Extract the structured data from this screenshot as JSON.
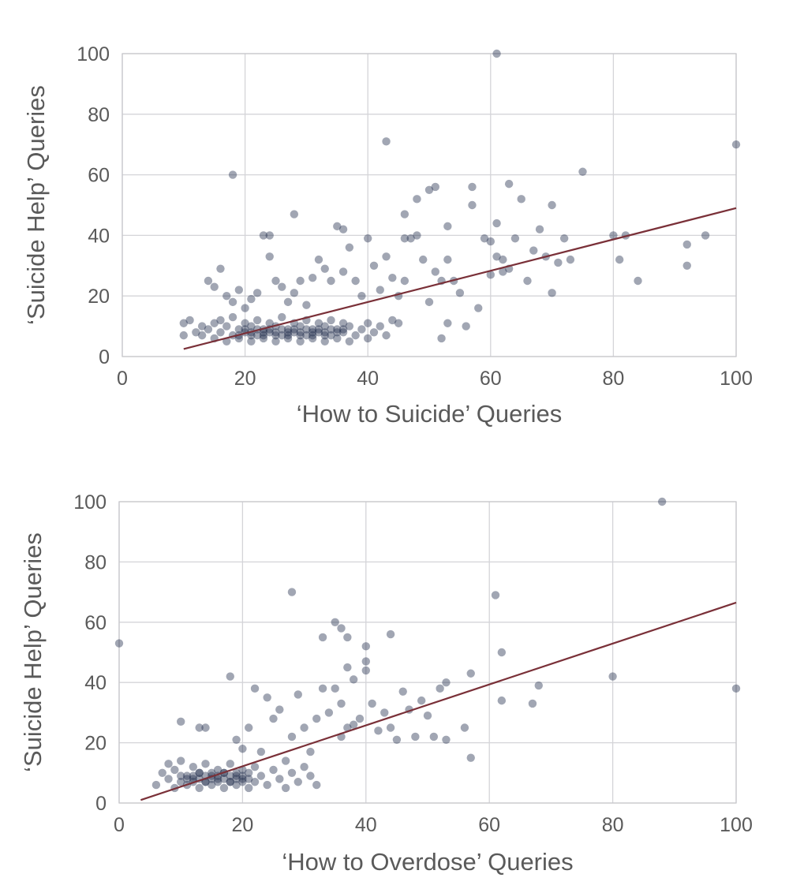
{
  "chart_data": [
    {
      "type": "scatter",
      "title": "",
      "xlabel": "‘How to Suicide’ Queries",
      "ylabel": "‘Suicide Help’ Queries",
      "xlim": [
        0,
        100
      ],
      "ylim": [
        0,
        100
      ],
      "xticks": [
        "0",
        "20",
        "40",
        "60",
        "80",
        "100"
      ],
      "yticks": [
        "0",
        "20",
        "40",
        "60",
        "80",
        "100"
      ],
      "grid": true,
      "point_color": "#1f2a4a",
      "trend_color": "#7a3038",
      "trendline": {
        "x": [
          10,
          100
        ],
        "y": [
          2.5,
          49
        ]
      },
      "points": [
        [
          10,
          11
        ],
        [
          11,
          12
        ],
        [
          10,
          7
        ],
        [
          12,
          8
        ],
        [
          13,
          10
        ],
        [
          13,
          7
        ],
        [
          14,
          9
        ],
        [
          15,
          11
        ],
        [
          15,
          6
        ],
        [
          16,
          8
        ],
        [
          16,
          12
        ],
        [
          17,
          5
        ],
        [
          17,
          10
        ],
        [
          18,
          7
        ],
        [
          18,
          13
        ],
        [
          19,
          9
        ],
        [
          19,
          6
        ],
        [
          20,
          11
        ],
        [
          20,
          8
        ],
        [
          21,
          5
        ],
        [
          21,
          10
        ],
        [
          22,
          7
        ],
        [
          22,
          12
        ],
        [
          23,
          9
        ],
        [
          23,
          6
        ],
        [
          24,
          11
        ],
        [
          24,
          8
        ],
        [
          25,
          5
        ],
        [
          25,
          10
        ],
        [
          26,
          7
        ],
        [
          26,
          13
        ],
        [
          27,
          9
        ],
        [
          27,
          6
        ],
        [
          28,
          11
        ],
        [
          28,
          8
        ],
        [
          29,
          5
        ],
        [
          29,
          10
        ],
        [
          30,
          7
        ],
        [
          30,
          12
        ],
        [
          31,
          9
        ],
        [
          31,
          6
        ],
        [
          32,
          11
        ],
        [
          32,
          8
        ],
        [
          33,
          5
        ],
        [
          33,
          10
        ],
        [
          34,
          7
        ],
        [
          34,
          12
        ],
        [
          35,
          9
        ],
        [
          35,
          6
        ],
        [
          36,
          11
        ],
        [
          36,
          8
        ],
        [
          37,
          5
        ],
        [
          37,
          10
        ],
        [
          38,
          7
        ],
        [
          39,
          9
        ],
        [
          40,
          11
        ],
        [
          40,
          6
        ],
        [
          41,
          8
        ],
        [
          42,
          10
        ],
        [
          43,
          7
        ],
        [
          44,
          12
        ],
        [
          45,
          11
        ],
        [
          20,
          9
        ],
        [
          22,
          9
        ],
        [
          24,
          9
        ],
        [
          26,
          9
        ],
        [
          28,
          9
        ],
        [
          30,
          9
        ],
        [
          32,
          9
        ],
        [
          34,
          9
        ],
        [
          36,
          9
        ],
        [
          21,
          8
        ],
        [
          23,
          8
        ],
        [
          25,
          8
        ],
        [
          27,
          8
        ],
        [
          29,
          8
        ],
        [
          31,
          8
        ],
        [
          33,
          8
        ],
        [
          35,
          8
        ],
        [
          19,
          7
        ],
        [
          21,
          7
        ],
        [
          23,
          7
        ],
        [
          25,
          7
        ],
        [
          27,
          7
        ],
        [
          29,
          7
        ],
        [
          31,
          7
        ],
        [
          33,
          7
        ],
        [
          14,
          25
        ],
        [
          15,
          23
        ],
        [
          16,
          29
        ],
        [
          17,
          20
        ],
        [
          18,
          18
        ],
        [
          19,
          22
        ],
        [
          20,
          16
        ],
        [
          21,
          19
        ],
        [
          22,
          21
        ],
        [
          23,
          40
        ],
        [
          24,
          40
        ],
        [
          24,
          33
        ],
        [
          25,
          25
        ],
        [
          26,
          23
        ],
        [
          27,
          18
        ],
        [
          28,
          47
        ],
        [
          28,
          21
        ],
        [
          29,
          25
        ],
        [
          30,
          17
        ],
        [
          31,
          26
        ],
        [
          32,
          32
        ],
        [
          33,
          29
        ],
        [
          34,
          25
        ],
        [
          35,
          43
        ],
        [
          36,
          28
        ],
        [
          36,
          42
        ],
        [
          37,
          36
        ],
        [
          38,
          25
        ],
        [
          39,
          20
        ],
        [
          40,
          39
        ],
        [
          41,
          30
        ],
        [
          42,
          22
        ],
        [
          43,
          33
        ],
        [
          43,
          71
        ],
        [
          44,
          26
        ],
        [
          45,
          20
        ],
        [
          46,
          25
        ],
        [
          46,
          39
        ],
        [
          46,
          47
        ],
        [
          47,
          39
        ],
        [
          48,
          52
        ],
        [
          48,
          40
        ],
        [
          49,
          32
        ],
        [
          50,
          55
        ],
        [
          50,
          18
        ],
        [
          51,
          56
        ],
        [
          51,
          28
        ],
        [
          52,
          25
        ],
        [
          53,
          43
        ],
        [
          53,
          32
        ],
        [
          54,
          25
        ],
        [
          55,
          21
        ],
        [
          56,
          10
        ],
        [
          57,
          56
        ],
        [
          57,
          50
        ],
        [
          58,
          16
        ],
        [
          59,
          39
        ],
        [
          60,
          38
        ],
        [
          61,
          44
        ],
        [
          61,
          33
        ],
        [
          62,
          32
        ],
        [
          63,
          57
        ],
        [
          64,
          39
        ],
        [
          65,
          52
        ],
        [
          66,
          25
        ],
        [
          67,
          35
        ],
        [
          68,
          42
        ],
        [
          69,
          33
        ],
        [
          70,
          21
        ],
        [
          70,
          50
        ],
        [
          71,
          31
        ],
        [
          72,
          39
        ],
        [
          73,
          32
        ],
        [
          75,
          61
        ],
        [
          80,
          40
        ],
        [
          81,
          32
        ],
        [
          82,
          40
        ],
        [
          84,
          25
        ],
        [
          92,
          37
        ],
        [
          92,
          30
        ],
        [
          95,
          40
        ],
        [
          100,
          70
        ],
        [
          61,
          100
        ],
        [
          18,
          60
        ],
        [
          52,
          6
        ],
        [
          53,
          11
        ],
        [
          60,
          27
        ],
        [
          62,
          28
        ],
        [
          63,
          29
        ]
      ]
    },
    {
      "type": "scatter",
      "title": "",
      "xlabel": "‘How to Overdose’ Queries",
      "ylabel": "‘Suicide Help’ Queries",
      "xlim": [
        0,
        100
      ],
      "ylim": [
        0,
        100
      ],
      "xticks": [
        "0",
        "20",
        "40",
        "60",
        "80",
        "100"
      ],
      "yticks": [
        "0",
        "20",
        "40",
        "60",
        "80",
        "100"
      ],
      "grid": true,
      "point_color": "#1f2a4a",
      "trend_color": "#7a3038",
      "trendline": {
        "x": [
          3.5,
          100
        ],
        "y": [
          1,
          66.5
        ]
      },
      "points": [
        [
          6,
          6
        ],
        [
          7,
          10
        ],
        [
          8,
          8
        ],
        [
          8,
          13
        ],
        [
          9,
          5
        ],
        [
          9,
          11
        ],
        [
          10,
          7
        ],
        [
          10,
          14
        ],
        [
          11,
          9
        ],
        [
          11,
          6
        ],
        [
          12,
          12
        ],
        [
          12,
          8
        ],
        [
          13,
          5
        ],
        [
          13,
          10
        ],
        [
          14,
          7
        ],
        [
          14,
          13
        ],
        [
          15,
          9
        ],
        [
          15,
          6
        ],
        [
          16,
          11
        ],
        [
          16,
          8
        ],
        [
          17,
          5
        ],
        [
          17,
          10
        ],
        [
          18,
          7
        ],
        [
          18,
          13
        ],
        [
          19,
          9
        ],
        [
          19,
          6
        ],
        [
          20,
          11
        ],
        [
          20,
          8
        ],
        [
          21,
          5
        ],
        [
          21,
          10
        ],
        [
          22,
          7
        ],
        [
          22,
          12
        ],
        [
          23,
          9
        ],
        [
          24,
          6
        ],
        [
          25,
          11
        ],
        [
          26,
          8
        ],
        [
          27,
          5
        ],
        [
          28,
          10
        ],
        [
          29,
          7
        ],
        [
          30,
          12
        ],
        [
          31,
          9
        ],
        [
          32,
          6
        ],
        [
          10,
          9
        ],
        [
          12,
          9
        ],
        [
          14,
          9
        ],
        [
          16,
          9
        ],
        [
          18,
          9
        ],
        [
          20,
          9
        ],
        [
          11,
          8
        ],
        [
          13,
          8
        ],
        [
          15,
          8
        ],
        [
          17,
          8
        ],
        [
          19,
          8
        ],
        [
          21,
          8
        ],
        [
          12,
          7
        ],
        [
          14,
          7
        ],
        [
          16,
          7
        ],
        [
          18,
          7
        ],
        [
          20,
          7
        ],
        [
          13,
          10
        ],
        [
          15,
          10
        ],
        [
          17,
          10
        ],
        [
          19,
          10
        ],
        [
          0,
          53
        ],
        [
          10,
          27
        ],
        [
          13,
          25
        ],
        [
          14,
          25
        ],
        [
          18,
          42
        ],
        [
          19,
          21
        ],
        [
          20,
          18
        ],
        [
          21,
          25
        ],
        [
          22,
          38
        ],
        [
          23,
          17
        ],
        [
          24,
          35
        ],
        [
          25,
          28
        ],
        [
          26,
          31
        ],
        [
          27,
          14
        ],
        [
          28,
          22
        ],
        [
          28,
          70
        ],
        [
          29,
          36
        ],
        [
          30,
          25
        ],
        [
          31,
          17
        ],
        [
          32,
          28
        ],
        [
          33,
          38
        ],
        [
          33,
          55
        ],
        [
          34,
          30
        ],
        [
          35,
          38
        ],
        [
          35,
          60
        ],
        [
          36,
          22
        ],
        [
          36,
          33
        ],
        [
          37,
          45
        ],
        [
          37,
          55
        ],
        [
          38,
          41
        ],
        [
          39,
          28
        ],
        [
          40,
          44
        ],
        [
          40,
          52
        ],
        [
          41,
          33
        ],
        [
          42,
          24
        ],
        [
          43,
          30
        ],
        [
          44,
          25
        ],
        [
          44,
          56
        ],
        [
          45,
          21
        ],
        [
          46,
          37
        ],
        [
          47,
          31
        ],
        [
          48,
          22
        ],
        [
          49,
          34
        ],
        [
          50,
          29
        ],
        [
          51,
          22
        ],
        [
          52,
          38
        ],
        [
          53,
          21
        ],
        [
          53,
          40
        ],
        [
          56,
          25
        ],
        [
          57,
          15
        ],
        [
          57,
          43
        ],
        [
          61,
          69
        ],
        [
          62,
          34
        ],
        [
          62,
          50
        ],
        [
          67,
          33
        ],
        [
          68,
          39
        ],
        [
          80,
          42
        ],
        [
          88,
          100
        ],
        [
          100,
          38
        ],
        [
          36,
          58
        ],
        [
          40,
          47
        ],
        [
          37,
          25
        ],
        [
          38,
          26
        ]
      ]
    }
  ]
}
